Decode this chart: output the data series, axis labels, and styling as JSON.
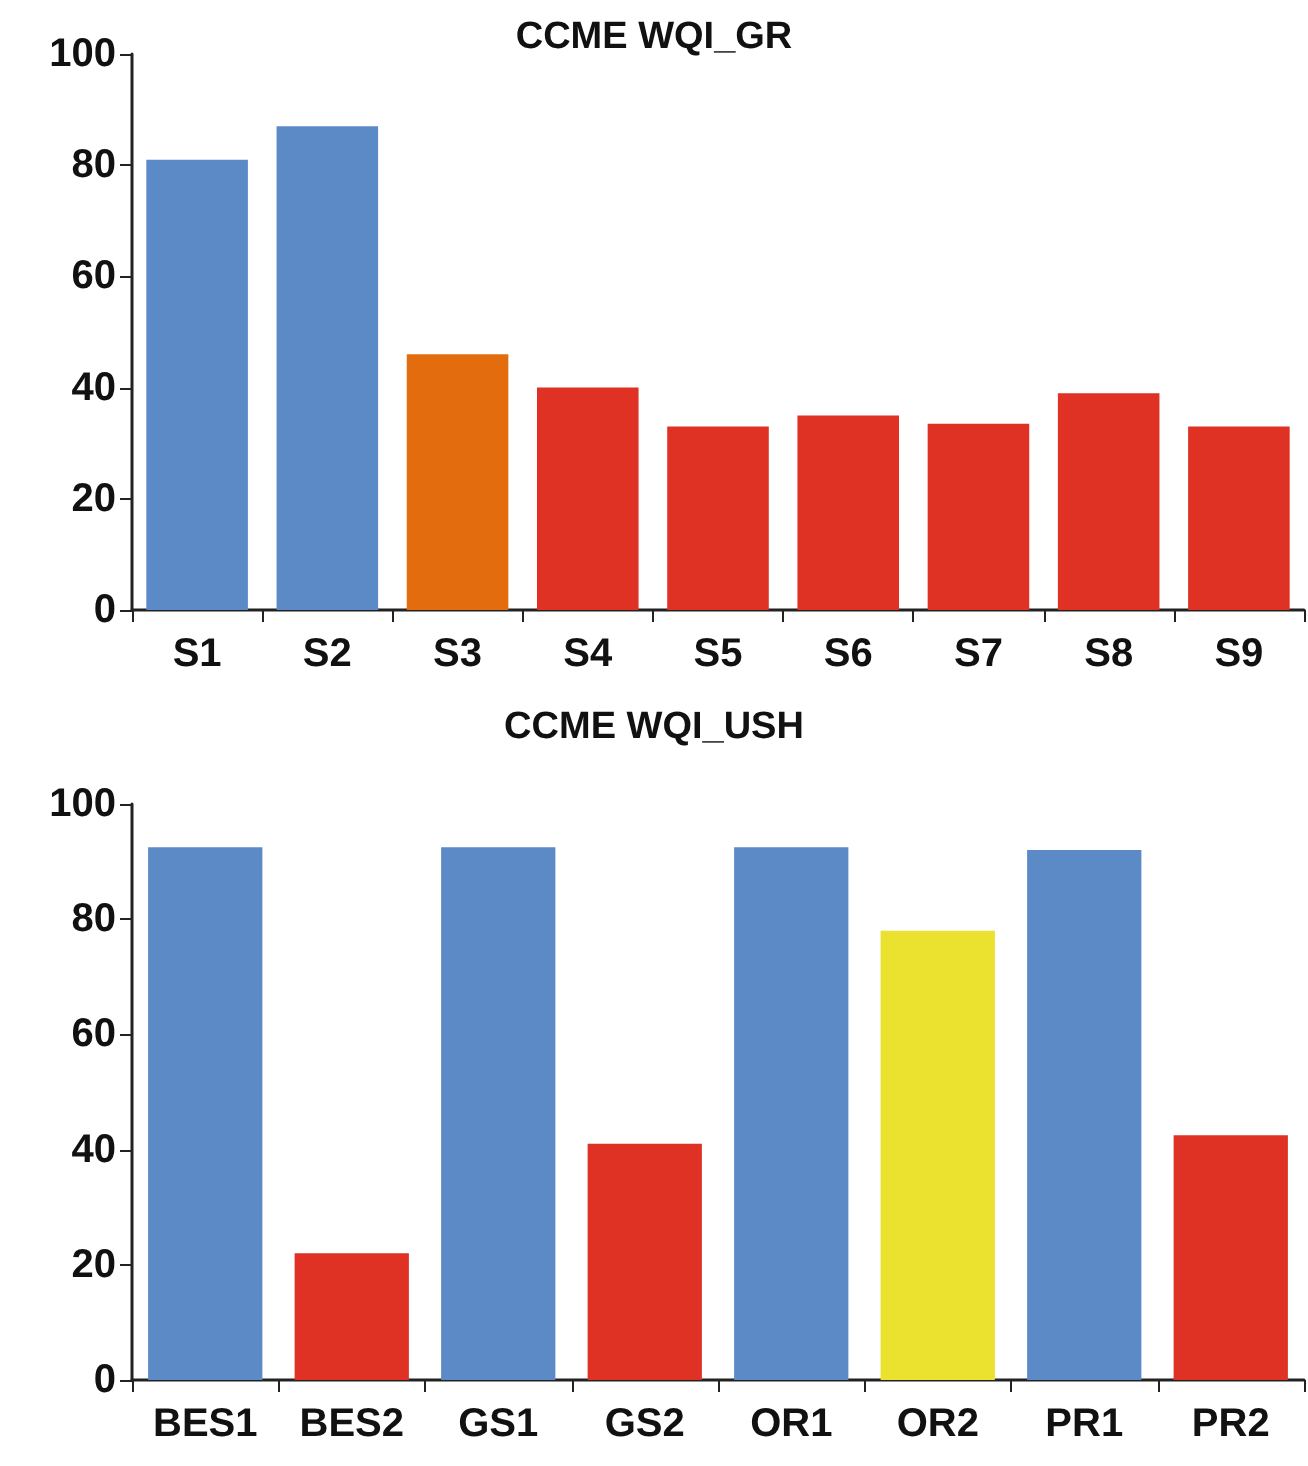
{
  "chart_data": [
    {
      "type": "bar",
      "title": "CCME WQI_GR",
      "categories": [
        "S1",
        "S2",
        "S3",
        "S4",
        "S5",
        "S6",
        "S7",
        "S8",
        "S9"
      ],
      "values": [
        81,
        87,
        46,
        40,
        33,
        35,
        33.5,
        39,
        33
      ],
      "colors": [
        "#5b8ac6",
        "#5b8ac6",
        "#e36c0e",
        "#df3124",
        "#df3124",
        "#df3124",
        "#df3124",
        "#df3124",
        "#df3124"
      ],
      "ylim": [
        0,
        100
      ],
      "yticks": [
        0,
        20,
        40,
        60,
        80,
        100
      ],
      "grid": false
    },
    {
      "type": "bar",
      "title": "CCME WQI_USH",
      "categories": [
        "BES1",
        "BES2",
        "GS1",
        "GS2",
        "OR1",
        "OR2",
        "PR1",
        "PR2"
      ],
      "values": [
        92.5,
        22,
        92.5,
        41,
        92.5,
        78,
        92,
        42.5
      ],
      "colors": [
        "#5b8ac6",
        "#df3124",
        "#5b8ac6",
        "#df3124",
        "#5b8ac6",
        "#ebe12f",
        "#5b8ac6",
        "#df3124"
      ],
      "ylim": [
        0,
        100
      ],
      "yticks": [
        0,
        20,
        40,
        60,
        80,
        100
      ],
      "grid": false
    }
  ]
}
